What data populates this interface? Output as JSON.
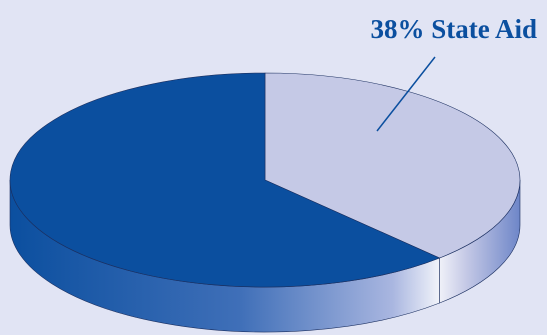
{
  "chart_data": {
    "type": "pie",
    "categories": [
      "State Aid",
      null
    ],
    "values": [
      38,
      62
    ],
    "value_labels": [
      "38%",
      null
    ],
    "colors": [
      "#c5c9e6",
      "#0b4f9f"
    ]
  }
}
